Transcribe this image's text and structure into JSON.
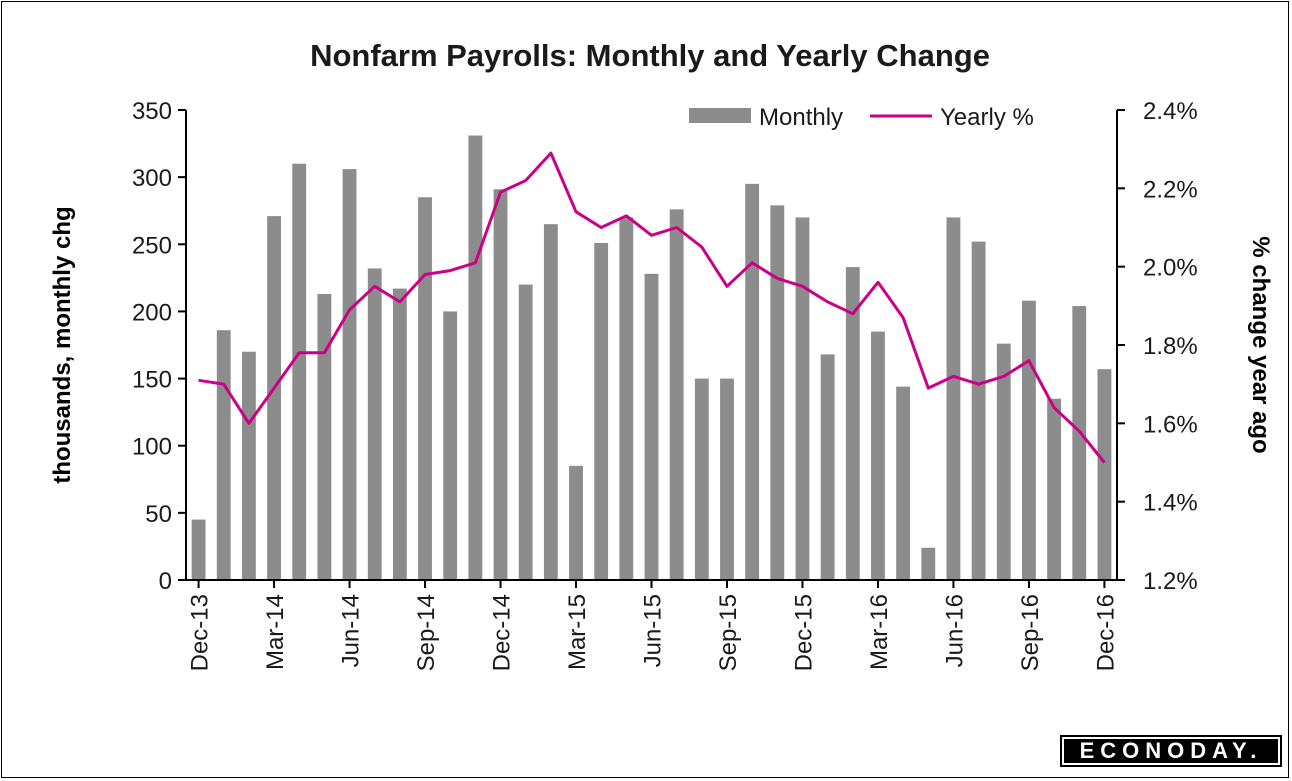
{
  "chart_data": {
    "type": "bar",
    "title": "Nonfarm Payrolls: Monthly and Yearly Change",
    "ylabel": "thousands, monthly chg",
    "y2label": "% change year ago",
    "ylim": [
      0,
      350
    ],
    "y2lim": [
      1.2,
      2.4
    ],
    "yticks": [
      "0",
      "50",
      "100",
      "150",
      "200",
      "250",
      "300",
      "350"
    ],
    "y2ticks": [
      "1.2%",
      "1.4%",
      "1.6%",
      "1.8%",
      "2.0%",
      "2.2%",
      "2.4%"
    ],
    "xtick_labels": [
      "Dec-13",
      "Mar-14",
      "Jun-14",
      "Sep-14",
      "Dec-14",
      "Mar-15",
      "Jun-15",
      "Sep-15",
      "Dec-15",
      "Mar-16",
      "Jun-16",
      "Sep-16",
      "Dec-16"
    ],
    "categories": [
      "Dec-13",
      "Jan-14",
      "Feb-14",
      "Mar-14",
      "Apr-14",
      "May-14",
      "Jun-14",
      "Jul-14",
      "Aug-14",
      "Sep-14",
      "Oct-14",
      "Nov-14",
      "Dec-14",
      "Jan-15",
      "Feb-15",
      "Mar-15",
      "Apr-15",
      "May-15",
      "Jun-15",
      "Jul-15",
      "Aug-15",
      "Sep-15",
      "Oct-15",
      "Nov-15",
      "Dec-15",
      "Jan-16",
      "Feb-16",
      "Mar-16",
      "Apr-16",
      "May-16",
      "Jun-16",
      "Jul-16",
      "Aug-16",
      "Sep-16",
      "Oct-16",
      "Nov-16",
      "Dec-16"
    ],
    "legend_position": "top-right",
    "series": [
      {
        "name": "Monthly",
        "type": "bar",
        "axis": "left",
        "color": "#8c8c8c",
        "values": [
          45,
          186,
          170,
          271,
          310,
          213,
          306,
          232,
          217,
          285,
          200,
          331,
          291,
          220,
          265,
          85,
          251,
          270,
          228,
          276,
          150,
          150,
          295,
          279,
          270,
          168,
          233,
          185,
          144,
          24,
          270,
          252,
          176,
          208,
          135,
          204,
          157
        ]
      },
      {
        "name": "Yearly %",
        "type": "line",
        "axis": "right",
        "color": "#cc0088",
        "values": [
          1.71,
          1.7,
          1.6,
          1.69,
          1.78,
          1.78,
          1.89,
          1.95,
          1.91,
          1.98,
          1.99,
          2.01,
          2.19,
          2.22,
          2.29,
          2.14,
          2.1,
          2.13,
          2.08,
          2.1,
          2.05,
          1.95,
          2.01,
          1.97,
          1.95,
          1.91,
          1.88,
          1.96,
          1.87,
          1.69,
          1.72,
          1.7,
          1.72,
          1.76,
          1.64,
          1.58,
          1.5
        ]
      }
    ]
  },
  "logo_text": "ECONODAY."
}
